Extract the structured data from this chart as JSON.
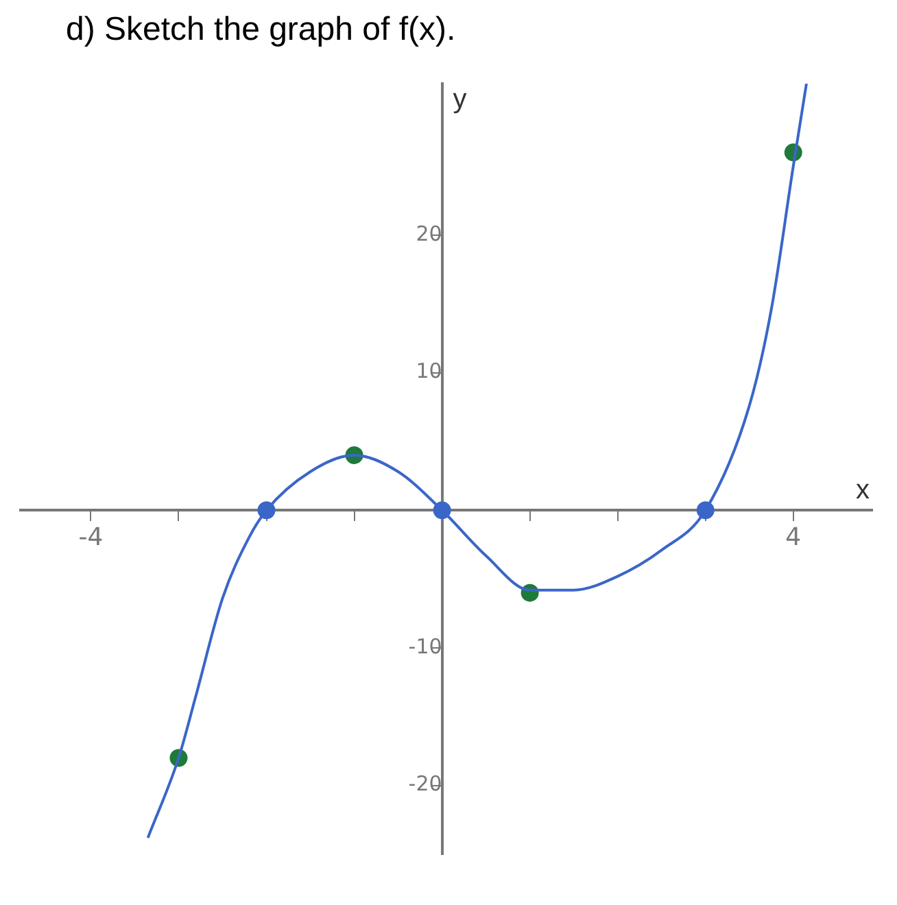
{
  "chart_data": {
    "type": "line",
    "title": "d) Sketch the graph of f(x).",
    "xlabel": "x",
    "ylabel": "y",
    "xlim": [
      -4.8,
      4.9
    ],
    "ylim": [
      -25,
      31
    ],
    "xticks": [
      {
        "value": -4,
        "label": "-4"
      },
      {
        "value": -3,
        "label": null
      },
      {
        "value": -2,
        "label": null
      },
      {
        "value": -1,
        "label": null
      },
      {
        "value": 1,
        "label": null
      },
      {
        "value": 2,
        "label": null
      },
      {
        "value": 3,
        "label": null
      },
      {
        "value": 4,
        "label": "4"
      }
    ],
    "yticks": [
      -20,
      -10,
      10,
      20
    ],
    "grid": false,
    "legend": false,
    "series": [
      {
        "color": "#3a66c8",
        "x": [
          -3.35,
          -3,
          -2.8,
          -2.5,
          -2.2,
          -2,
          -1.5,
          -1,
          -0.5,
          0,
          0.5,
          1,
          1.5,
          2,
          2.5,
          3,
          3.5,
          3.75,
          4,
          4.15
        ],
        "values": [
          -23.8,
          -18,
          -13.4,
          -6.4,
          -2,
          0,
          2.8,
          4,
          2.8,
          0,
          -3.3,
          -5.8,
          -5.8,
          -4.8,
          -2.9,
          0,
          7.6,
          14.6,
          25,
          31
        ]
      },
      {
        "type": "scatter",
        "color": "#1f7a3a",
        "x": [
          -3,
          -1,
          1,
          4
        ],
        "values": [
          -18,
          4,
          -6,
          26
        ]
      },
      {
        "type": "scatter",
        "color": "#3a66c8",
        "x": [
          -2,
          0,
          3
        ],
        "values": [
          0,
          0,
          0
        ]
      }
    ]
  }
}
